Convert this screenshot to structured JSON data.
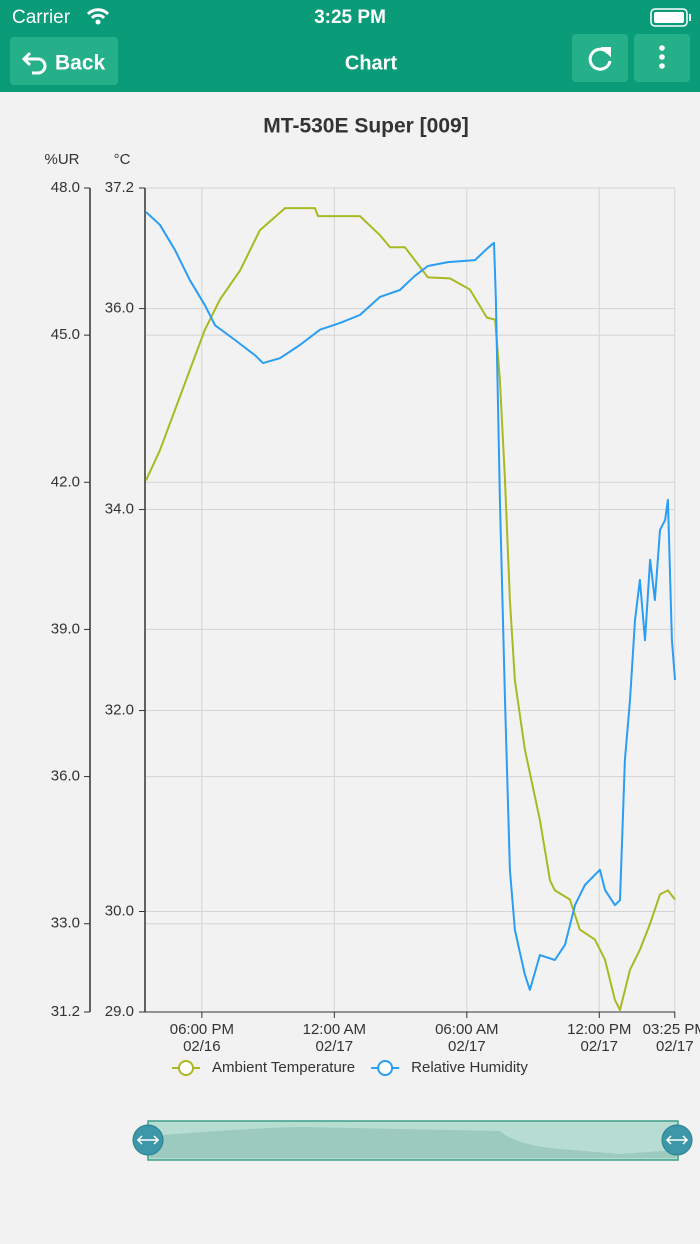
{
  "status_bar": {
    "carrier": "Carrier",
    "time": "3:25 PM"
  },
  "nav": {
    "back": "Back",
    "title": "Chart"
  },
  "chart_data": {
    "type": "line",
    "title": "MT-530E Super [009]",
    "y_label": "%UR",
    "y2_label": "°C",
    "xlim": [
      15.47,
      39.43
    ],
    "xticks": [
      {
        "value": 18,
        "label": [
          "06:00 PM",
          "02/16"
        ]
      },
      {
        "value": 24,
        "label": [
          "12:00 AM",
          "02/17"
        ]
      },
      {
        "value": 30,
        "label": [
          "06:00 AM",
          "02/17"
        ]
      },
      {
        "value": 36,
        "label": [
          "12:00 PM",
          "02/17"
        ]
      },
      {
        "value": 39.42,
        "label": [
          "03:25 PM",
          "02/17"
        ]
      }
    ],
    "ylim": [
      31.2,
      48.0
    ],
    "yticks": [
      31.2,
      {
        "value": 33,
        "label": "33.0"
      },
      {
        "value": 36,
        "label": "36.0"
      },
      {
        "value": 39,
        "label": "39.0"
      },
      {
        "value": 42,
        "label": "42.0"
      },
      {
        "value": 45,
        "label": "45.0"
      },
      {
        "value": 48,
        "label": "48.0"
      }
    ],
    "y2lim": [
      29.0,
      37.2
    ],
    "y2ticks": [
      {
        "value": 29,
        "label": "29.0"
      },
      {
        "value": 30,
        "label": "30.0"
      },
      {
        "value": 32,
        "label": "32.0"
      },
      {
        "value": 34,
        "label": "34.0"
      },
      {
        "value": 36,
        "label": "36.0"
      },
      37.2
    ],
    "grid": true,
    "legend": "bottom",
    "series": [
      {
        "name": "Ambient Temperature",
        "color": "#a9b923",
        "axis": "y2",
        "x": [
          15.47,
          16.1,
          16.78,
          17.46,
          18.14,
          18.82,
          19.73,
          20.63,
          21.77,
          23.12,
          23.26,
          25.16,
          26.07,
          26.52,
          27.2,
          28.24,
          29.24,
          30.14,
          30.91,
          31.28,
          31.5,
          31.73,
          31.95,
          32.18,
          32.63,
          33.31,
          33.77,
          33.99,
          34.67,
          35.12,
          35.8,
          36.26,
          36.71,
          36.94,
          37.39,
          37.84,
          38.3,
          38.75,
          39.11,
          39.43
        ],
        "values": [
          34.29,
          34.59,
          34.99,
          35.39,
          35.79,
          36.09,
          36.38,
          36.78,
          37.0,
          37.0,
          36.92,
          36.92,
          36.73,
          36.61,
          36.61,
          36.31,
          36.3,
          36.19,
          35.91,
          35.89,
          35.29,
          34.29,
          33.1,
          32.3,
          31.61,
          30.91,
          30.31,
          30.21,
          30.12,
          29.82,
          29.72,
          29.52,
          29.12,
          29.02,
          29.42,
          29.62,
          29.88,
          30.17,
          30.21,
          30.12
        ]
      },
      {
        "name": "Relative Humidity",
        "color": "#2a9df4",
        "axis": "y",
        "x": [
          15.47,
          16.1,
          16.78,
          17.46,
          18.14,
          18.6,
          19.5,
          20.41,
          20.77,
          21.54,
          22.44,
          23.35,
          24.26,
          25.16,
          26.07,
          26.97,
          27.65,
          28.24,
          29.15,
          30.37,
          30.96,
          31.23,
          31.32,
          31.5,
          31.73,
          31.95,
          32.18,
          32.63,
          32.86,
          33.31,
          33.99,
          34.45,
          34.9,
          35.35,
          36.03,
          36.26,
          36.71,
          36.94,
          37.16,
          37.39,
          37.62,
          37.84,
          38.07,
          38.3,
          38.52,
          38.75,
          38.98,
          39.11,
          39.29,
          39.43
        ],
        "values": [
          47.51,
          47.25,
          46.74,
          46.12,
          45.61,
          45.2,
          44.9,
          44.59,
          44.43,
          44.53,
          44.8,
          45.11,
          45.25,
          45.41,
          45.78,
          45.92,
          46.21,
          46.41,
          46.49,
          46.53,
          46.78,
          46.88,
          45.72,
          41.64,
          37.56,
          34.1,
          32.87,
          31.96,
          31.65,
          32.36,
          32.26,
          32.57,
          33.38,
          33.79,
          34.1,
          33.69,
          33.38,
          33.48,
          36.34,
          37.56,
          39.19,
          40.01,
          38.78,
          40.42,
          39.6,
          41.03,
          41.23,
          41.64,
          38.78,
          37.97
        ]
      }
    ]
  }
}
